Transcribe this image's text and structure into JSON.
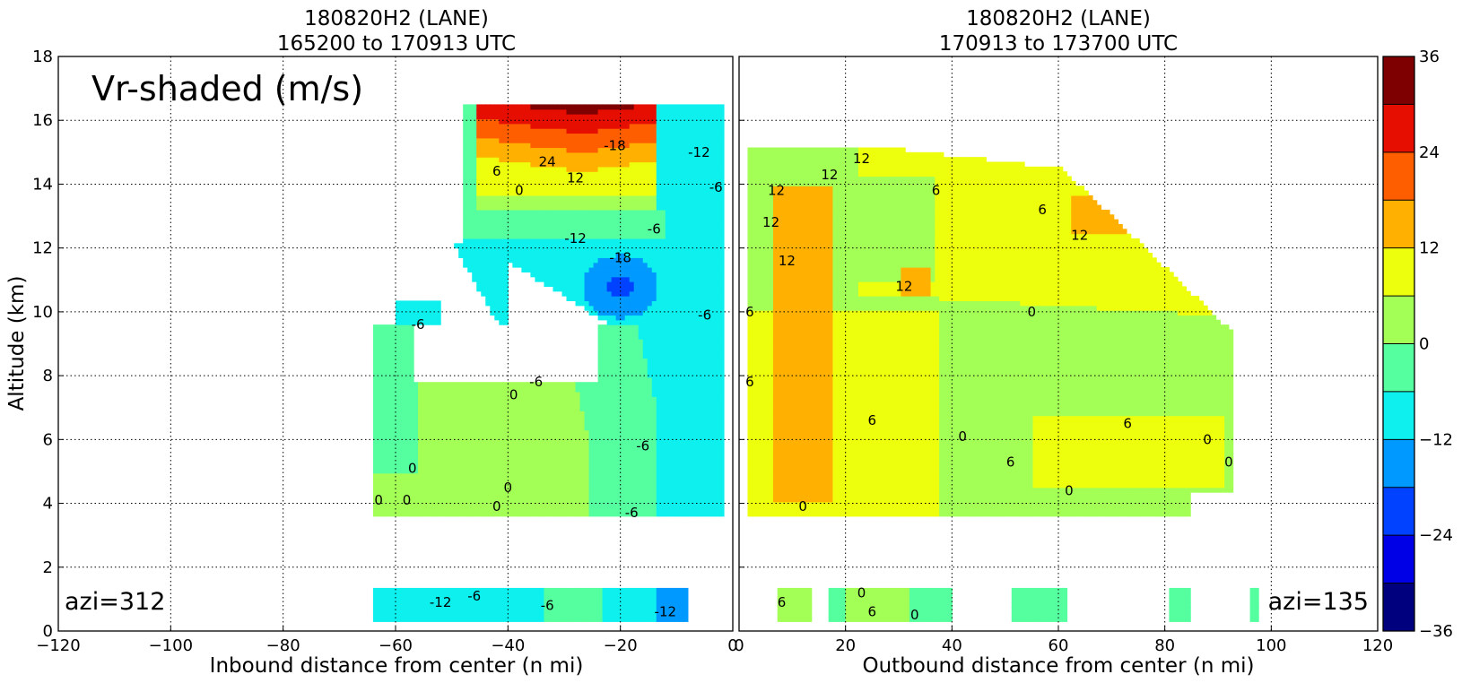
{
  "overlay_label": "Vr-shaded (m/s)",
  "chart_data": [
    {
      "type": "heatmap",
      "title_line1": "180820H2 (LANE)",
      "title_line2": "165200 to 170913 UTC",
      "xlabel": "Inbound distance from center (n mi)",
      "ylabel": "Altitude (km)",
      "xlim": [
        -120,
        0
      ],
      "ylim": [
        0,
        18
      ],
      "xticks": [
        "−120",
        "−100",
        "−80",
        "−60",
        "−40",
        "−20",
        "0"
      ],
      "xtick_values": [
        -120,
        -100,
        -80,
        -60,
        -40,
        -20,
        0
      ],
      "yticks": [
        "0",
        "2",
        "4",
        "6",
        "8",
        "10",
        "12",
        "14",
        "16",
        "18"
      ],
      "ytick_values": [
        0,
        2,
        4,
        6,
        8,
        10,
        12,
        14,
        16,
        18
      ],
      "grid": true,
      "azimuth_label": "azi=312",
      "contour_labels": [
        {
          "text": "24",
          "x": -33,
          "y": 14.7
        },
        {
          "text": "-18",
          "x": -21,
          "y": 15.2
        },
        {
          "text": "-12",
          "x": -6,
          "y": 15.0
        },
        {
          "text": "6",
          "x": -42,
          "y": 14.4
        },
        {
          "text": "12",
          "x": -28,
          "y": 14.2
        },
        {
          "text": "0",
          "x": -38,
          "y": 13.8
        },
        {
          "text": "-6",
          "x": -3,
          "y": 13.9
        },
        {
          "text": "-12",
          "x": -28,
          "y": 12.3
        },
        {
          "text": "-6",
          "x": -14,
          "y": 12.6
        },
        {
          "text": "-18",
          "x": -20,
          "y": 11.7
        },
        {
          "text": "-6",
          "x": -5,
          "y": 9.9
        },
        {
          "text": "-6",
          "x": -56,
          "y": 9.6
        },
        {
          "text": "-6",
          "x": -35,
          "y": 7.8
        },
        {
          "text": "0",
          "x": -39,
          "y": 7.4
        },
        {
          "text": "-6",
          "x": -16,
          "y": 5.8
        },
        {
          "text": "0",
          "x": -57,
          "y": 5.1
        },
        {
          "text": "0",
          "x": -40,
          "y": 4.5
        },
        {
          "text": "0",
          "x": -63,
          "y": 4.1
        },
        {
          "text": "0",
          "x": -58,
          "y": 4.1
        },
        {
          "text": "0",
          "x": -42,
          "y": 3.9
        },
        {
          "text": "-6",
          "x": -18,
          "y": 3.7
        },
        {
          "text": "-12",
          "x": -52,
          "y": 0.9
        },
        {
          "text": "-6",
          "x": -46,
          "y": 1.1
        },
        {
          "text": "-6",
          "x": -33,
          "y": 0.8
        },
        {
          "text": "-12",
          "x": -12,
          "y": 0.6
        }
      ]
    },
    {
      "type": "heatmap",
      "title_line1": "180820H2 (LANE)",
      "title_line2": "170913 to 173700 UTC",
      "xlabel": "Outbound distance from center (n mi)",
      "ylabel": "",
      "xlim": [
        0,
        120
      ],
      "ylim": [
        0,
        18
      ],
      "xticks": [
        "0",
        "20",
        "40",
        "60",
        "80",
        "100",
        "120"
      ],
      "xtick_values": [
        0,
        20,
        40,
        60,
        80,
        100,
        120
      ],
      "grid": true,
      "azimuth_label": "azi=135",
      "contour_labels": [
        {
          "text": "12",
          "x": 17,
          "y": 14.3
        },
        {
          "text": "12",
          "x": 23,
          "y": 14.8
        },
        {
          "text": "12",
          "x": 7,
          "y": 13.8
        },
        {
          "text": "12",
          "x": 6,
          "y": 12.8
        },
        {
          "text": "12",
          "x": 9,
          "y": 11.6
        },
        {
          "text": "6",
          "x": 37,
          "y": 13.8
        },
        {
          "text": "6",
          "x": 57,
          "y": 13.2
        },
        {
          "text": "12",
          "x": 64,
          "y": 12.4
        },
        {
          "text": "12",
          "x": 31,
          "y": 10.8
        },
        {
          "text": "6",
          "x": 2,
          "y": 10.0
        },
        {
          "text": "0",
          "x": 55,
          "y": 10.0
        },
        {
          "text": "6",
          "x": 2,
          "y": 7.8
        },
        {
          "text": "6",
          "x": 25,
          "y": 6.6
        },
        {
          "text": "0",
          "x": 42,
          "y": 6.1
        },
        {
          "text": "6",
          "x": 73,
          "y": 6.5
        },
        {
          "text": "0",
          "x": 88,
          "y": 6.0
        },
        {
          "text": "0",
          "x": 92,
          "y": 5.3
        },
        {
          "text": "6",
          "x": 51,
          "y": 5.3
        },
        {
          "text": "0",
          "x": 62,
          "y": 4.4
        },
        {
          "text": "0",
          "x": 12,
          "y": 3.9
        },
        {
          "text": "6",
          "x": 8,
          "y": 0.9
        },
        {
          "text": "0",
          "x": 23,
          "y": 1.2
        },
        {
          "text": "6",
          "x": 25,
          "y": 0.6
        },
        {
          "text": "0",
          "x": 33,
          "y": 0.5
        }
      ]
    }
  ],
  "colorbar": {
    "ticks": [
      "36",
      "24",
      "12",
      "0",
      "−12",
      "−24",
      "−36"
    ],
    "tick_values": [
      36,
      24,
      12,
      0,
      -12,
      -24,
      -36
    ],
    "levels": [
      -36,
      -30,
      -24,
      -18,
      -12,
      -6,
      0,
      6,
      12,
      18,
      24,
      30,
      36
    ],
    "colors": [
      "#00007f",
      "#0000e6",
      "#0042ff",
      "#0099ff",
      "#0df0ee",
      "#55ff9f",
      "#a3ff55",
      "#eeff0d",
      "#ffb000",
      "#ff5e00",
      "#e60e00",
      "#7f0000"
    ]
  }
}
